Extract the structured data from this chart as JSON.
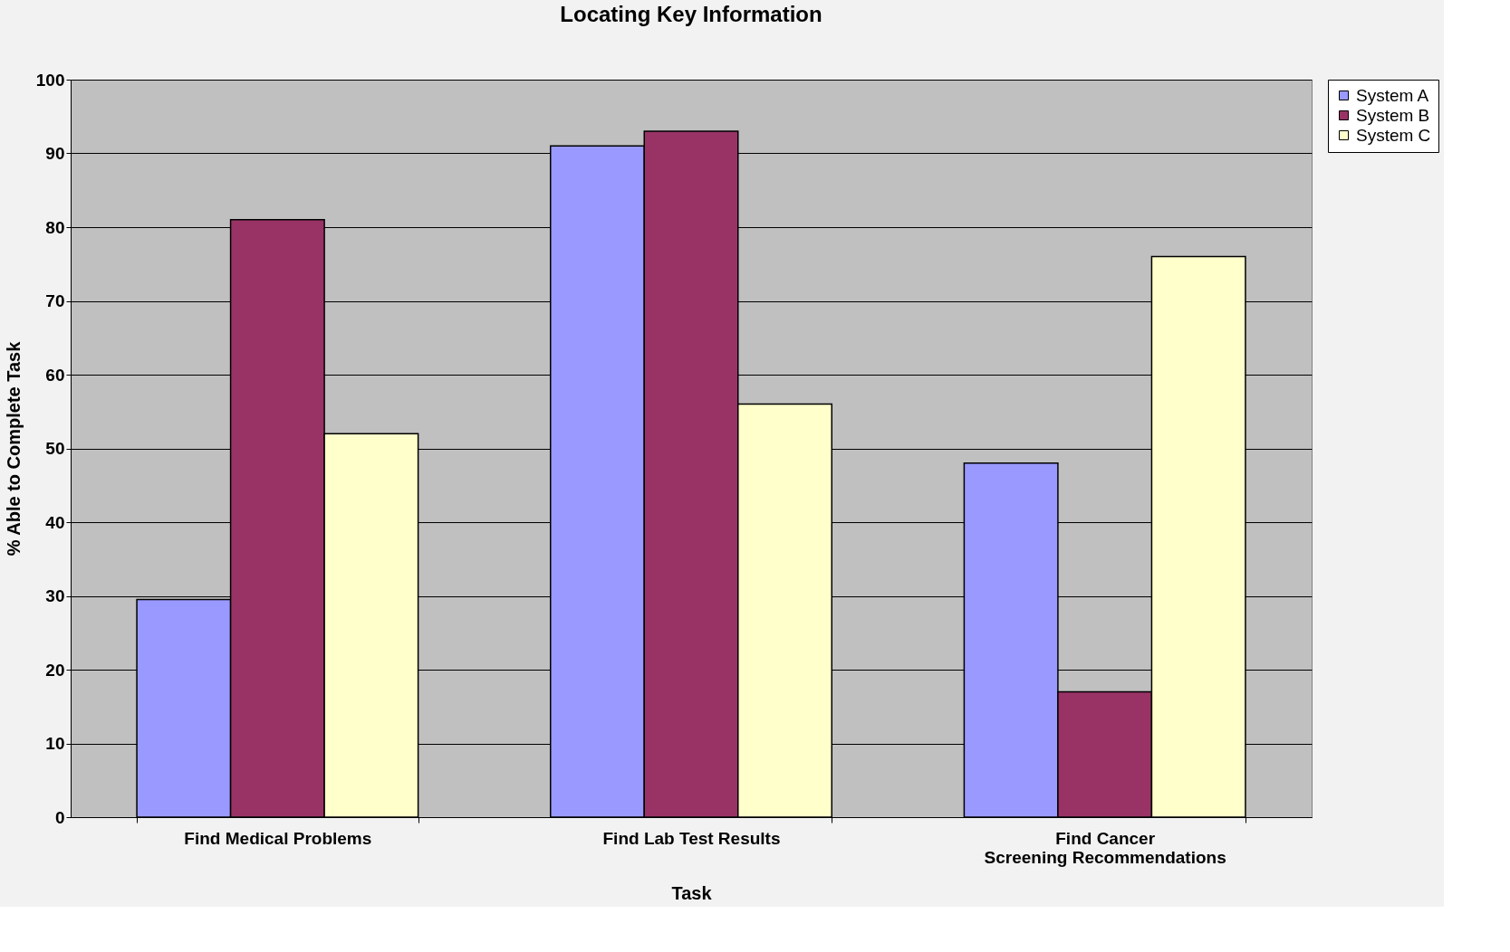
{
  "chart_data": {
    "type": "bar",
    "title": "Locating Key Information",
    "xlabel": "Task",
    "ylabel": "%  Able to Complete Task",
    "categories": [
      "Find Medical Problems",
      "Find Lab Test Results",
      "Find Cancer Screening Recommendations"
    ],
    "series": [
      {
        "name": "System A",
        "color": "#9999ff",
        "values": [
          29.5,
          91,
          48
        ]
      },
      {
        "name": "System B",
        "color": "#993366",
        "values": [
          81,
          93,
          17
        ]
      },
      {
        "name": "System C",
        "color": "#ffffcc",
        "values": [
          52,
          56,
          76
        ]
      }
    ],
    "ylim": [
      0,
      100
    ],
    "yticks": [
      0,
      10,
      20,
      30,
      40,
      50,
      60,
      70,
      80,
      90,
      100
    ],
    "grid": "y",
    "legend": "right"
  }
}
